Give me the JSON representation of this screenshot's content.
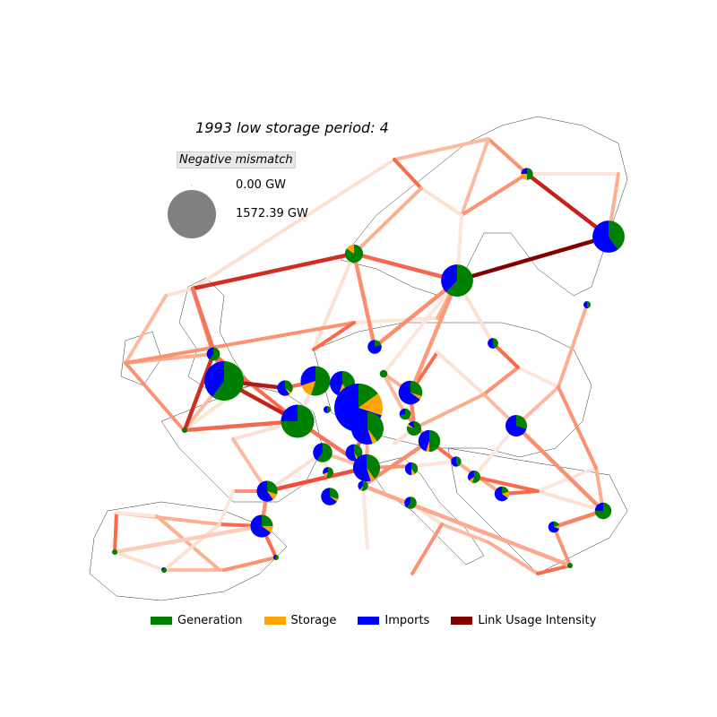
{
  "title": "1993 low storage period: 4",
  "size_legend": {
    "title": "Negative mismatch",
    "entries": [
      {
        "label": "0.00 GW",
        "value": 0.0
      },
      {
        "label": "1572.39 GW",
        "value": 1572.39
      }
    ],
    "color": "#808080"
  },
  "legend": [
    {
      "label": "Generation",
      "color": "#008000",
      "icon": "generation-swatch"
    },
    {
      "label": "Storage",
      "color": "#ffa500",
      "icon": "storage-swatch"
    },
    {
      "label": "Imports",
      "color": "#0000ff",
      "icon": "imports-swatch"
    },
    {
      "label": "Link Usage Intensity",
      "color": "#800000",
      "icon": "link-usage-swatch"
    }
  ],
  "link_usage_intensity": [
    {
      "from": "GB-S",
      "to": "NL",
      "intensity": 0.85
    },
    {
      "from": "GB-N",
      "to": "NO-S",
      "intensity": 0.75
    },
    {
      "from": "GB-S",
      "to": "FR-N",
      "intensity": 0.8
    },
    {
      "from": "SE-S",
      "to": "FI",
      "intensity": 1.0
    },
    {
      "from": "NO-N",
      "to": "FI",
      "intensity": 0.8
    },
    {
      "from": "IE",
      "to": "GB-N",
      "intensity": 0.35
    },
    {
      "from": "IE",
      "to": "FR-W",
      "intensity": 0.75
    },
    {
      "from": "GB-N",
      "to": "GB-S",
      "intensity": 0.45
    },
    {
      "from": "NO-S",
      "to": "SE-S",
      "intensity": 0.5
    },
    {
      "from": "NO-S",
      "to": "DK",
      "intensity": 0.35
    },
    {
      "from": "SE-S",
      "to": "DK",
      "intensity": 0.35
    },
    {
      "from": "SE-S",
      "to": "PL",
      "intensity": 0.3
    },
    {
      "from": "FR-N",
      "to": "FR-W",
      "intensity": 0.5
    },
    {
      "from": "FR-N",
      "to": "FR-S",
      "intensity": 0.45
    },
    {
      "from": "FR-S",
      "to": "ES-N",
      "intensity": 0.6
    },
    {
      "from": "ES-N",
      "to": "ES-S",
      "intensity": 0.35
    },
    {
      "from": "ES-S",
      "to": "PT",
      "intensity": 0.1
    },
    {
      "from": "IT-N",
      "to": "IT-S",
      "intensity": 0.35
    },
    {
      "from": "DE-S",
      "to": "AT",
      "intensity": 0.5
    },
    {
      "from": "PL",
      "to": "SK",
      "intensity": 0.4
    },
    {
      "from": "HU",
      "to": "RO",
      "intensity": 0.35
    },
    {
      "from": "RO",
      "to": "BG",
      "intensity": 0.4
    },
    {
      "from": "GR",
      "to": "IT-S",
      "intensity": 0.25
    },
    {
      "from": "BA",
      "to": "RS",
      "intensity": 0.6
    }
  ],
  "nodes": [
    {
      "id": "NO-S",
      "neg_mismatch_gw": 220,
      "generation": 0.85,
      "storage": 0.15,
      "imports": 0.0
    },
    {
      "id": "NO-N",
      "neg_mismatch_gw": 95,
      "generation": 0.5,
      "storage": 0.25,
      "imports": 0.25
    },
    {
      "id": "SE-S",
      "neg_mismatch_gw": 690,
      "generation": 0.62,
      "storage": 0.0,
      "imports": 0.38
    },
    {
      "id": "FI",
      "neg_mismatch_gw": 690,
      "generation": 0.4,
      "storage": 0.0,
      "imports": 0.6
    },
    {
      "id": "EE",
      "neg_mismatch_gw": 35,
      "generation": 0.45,
      "storage": 0.0,
      "imports": 0.55
    },
    {
      "id": "LV",
      "neg_mismatch_gw": 75,
      "generation": 0.45,
      "storage": 0.0,
      "imports": 0.55
    },
    {
      "id": "IE",
      "neg_mismatch_gw": 120,
      "generation": 0.6,
      "storage": 0.0,
      "imports": 0.4
    },
    {
      "id": "GB-S",
      "neg_mismatch_gw": 1040,
      "generation": 0.6,
      "storage": 0.0,
      "imports": 0.4
    },
    {
      "id": "DK",
      "neg_mismatch_gw": 130,
      "generation": 0.2,
      "storage": 0.0,
      "imports": 0.8
    },
    {
      "id": "NL",
      "neg_mismatch_gw": 160,
      "generation": 0.35,
      "storage": 0.05,
      "imports": 0.6
    },
    {
      "id": "BE",
      "neg_mismatch_gw": 590,
      "generation": 0.55,
      "storage": 0.15,
      "imports": 0.3
    },
    {
      "id": "DE-N",
      "neg_mismatch_gw": 420,
      "generation": 0.4,
      "storage": 0.15,
      "imports": 0.45
    },
    {
      "id": "DE-C",
      "neg_mismatch_gw": 1572.39,
      "generation": 0.15,
      "storage": 0.15,
      "imports": 0.7
    },
    {
      "id": "CZ",
      "neg_mismatch_gw": 40,
      "generation": 1.0,
      "storage": 0.0,
      "imports": 0.0
    },
    {
      "id": "PL",
      "neg_mismatch_gw": 380,
      "generation": 0.3,
      "storage": 0.05,
      "imports": 0.65
    },
    {
      "id": "FR-N",
      "neg_mismatch_gw": 740,
      "generation": 0.75,
      "storage": 0.0,
      "imports": 0.25
    },
    {
      "id": "FR-W",
      "neg_mismatch_gw": 10,
      "generation": 1.0,
      "storage": 0.0,
      "imports": 0.0
    },
    {
      "id": "LU",
      "neg_mismatch_gw": 35,
      "generation": 0.5,
      "storage": 0.0,
      "imports": 0.5
    },
    {
      "id": "DE-S",
      "neg_mismatch_gw": 700,
      "generation": 0.4,
      "storage": 0.05,
      "imports": 0.55
    },
    {
      "id": "CH",
      "neg_mismatch_gw": 250,
      "generation": 0.6,
      "storage": 0.0,
      "imports": 0.4
    },
    {
      "id": "AT",
      "neg_mismatch_gw": 190,
      "generation": 0.4,
      "storage": 0.05,
      "imports": 0.55
    },
    {
      "id": "SK",
      "neg_mismatch_gw": 140,
      "generation": 0.8,
      "storage": 0.05,
      "imports": 0.15
    },
    {
      "id": "HU",
      "neg_mismatch_gw": 310,
      "generation": 0.3,
      "storage": 0.0,
      "imports": 0.7
    },
    {
      "id": "FR-S",
      "neg_mismatch_gw": 490,
      "generation": 0.4,
      "storage": 0.05,
      "imports": 0.55
    },
    {
      "id": "FR-SE",
      "neg_mismatch_gw": 75,
      "generation": 0.55,
      "storage": 0.15,
      "imports": 0.3
    },
    {
      "id": "IT-N",
      "neg_mismatch_gw": 320,
      "generation": 0.5,
      "storage": 0.05,
      "imports": 0.45
    },
    {
      "id": "IT-NW",
      "neg_mismatch_gw": 85,
      "generation": 0.7,
      "storage": 0.0,
      "imports": 0.3
    },
    {
      "id": "SI",
      "neg_mismatch_gw": 110,
      "generation": 0.4,
      "storage": 0.1,
      "imports": 0.5
    },
    {
      "id": "HR",
      "neg_mismatch_gw": 70,
      "generation": 0.45,
      "storage": 0.0,
      "imports": 0.55
    },
    {
      "id": "IT-C",
      "neg_mismatch_gw": 105,
      "generation": 0.55,
      "storage": 0.1,
      "imports": 0.35
    },
    {
      "id": "ES-N",
      "neg_mismatch_gw": 290,
      "generation": 0.3,
      "storage": 0.1,
      "imports": 0.6
    },
    {
      "id": "FR-MED",
      "neg_mismatch_gw": 205,
      "generation": 0.3,
      "storage": 0.05,
      "imports": 0.65
    },
    {
      "id": "RO",
      "neg_mismatch_gw": 185,
      "generation": 0.75,
      "storage": 0.0,
      "imports": 0.25
    },
    {
      "id": "BA",
      "neg_mismatch_gw": 145,
      "generation": 0.2,
      "storage": 0.15,
      "imports": 0.65
    },
    {
      "id": "IT-S",
      "neg_mismatch_gw": 70,
      "generation": 0.55,
      "storage": 0.05,
      "imports": 0.4
    },
    {
      "id": "IT-SE",
      "neg_mismatch_gw": 100,
      "generation": 0.6,
      "storage": 0.0,
      "imports": 0.4
    },
    {
      "id": "BG",
      "neg_mismatch_gw": 85,
      "generation": 0.2,
      "storage": 0.1,
      "imports": 0.7
    },
    {
      "id": "ES-S",
      "neg_mismatch_gw": 340,
      "generation": 0.25,
      "storage": 0.1,
      "imports": 0.65
    },
    {
      "id": "PT",
      "neg_mismatch_gw": 15,
      "generation": 1.0,
      "storage": 0.0,
      "imports": 0.0
    },
    {
      "id": "ES-SW",
      "neg_mismatch_gw": 20,
      "generation": 0.8,
      "storage": 0.0,
      "imports": 0.2
    },
    {
      "id": "ES-SE",
      "neg_mismatch_gw": 15,
      "generation": 0.6,
      "storage": 0.0,
      "imports": 0.4
    },
    {
      "id": "GR",
      "neg_mismatch_gw": 10,
      "generation": 1.0,
      "storage": 0.0,
      "imports": 0.0
    }
  ]
}
